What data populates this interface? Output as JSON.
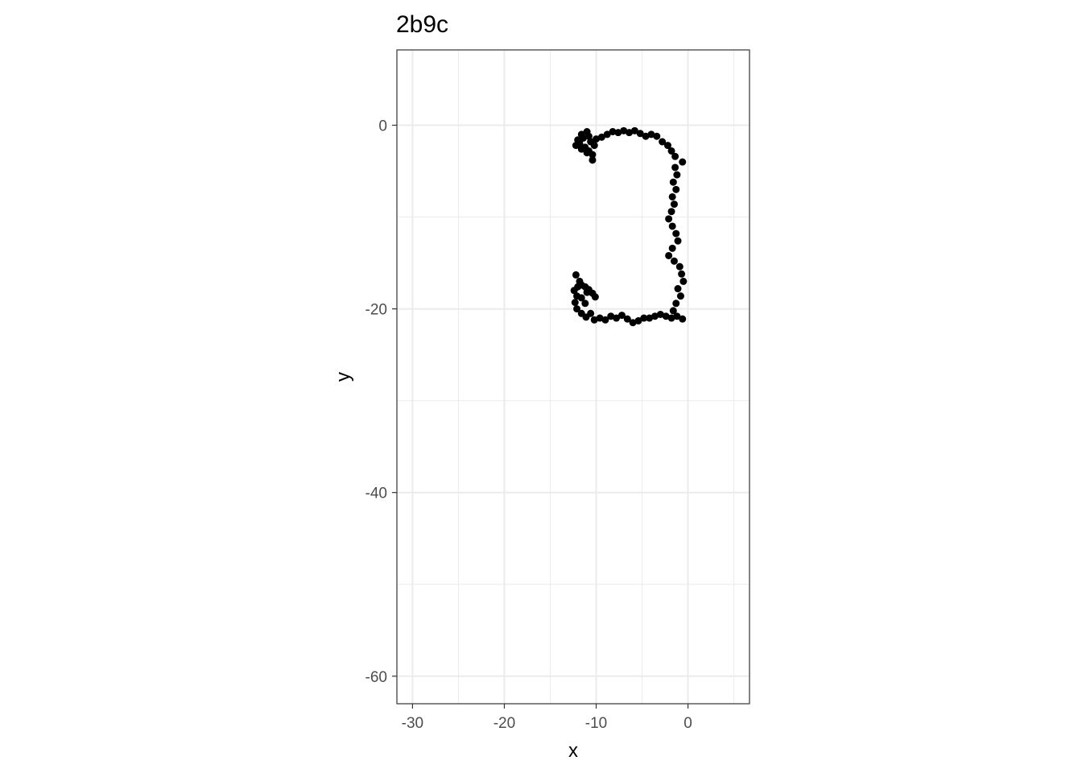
{
  "chart_data": {
    "type": "scatter",
    "title": "2b9c",
    "xlabel": "x",
    "ylabel": "y",
    "xlim": [
      -31.7,
      6.7
    ],
    "ylim": [
      -63,
      8.2
    ],
    "x_breaks": [
      -30,
      -20,
      -10,
      0
    ],
    "x_tick_labels": [
      "-30",
      "-20",
      "-10",
      "0"
    ],
    "x_minor_breaks": [
      -25,
      -15,
      -5,
      5
    ],
    "y_breaks": [
      0,
      -20,
      -40,
      -60
    ],
    "y_tick_labels": [
      "0",
      "-20",
      "-40",
      "-60"
    ],
    "y_minor_breaks": [
      -10,
      -30,
      -50
    ],
    "grid": true,
    "point_color": "#000000",
    "grid_color": "#ebebeb",
    "series": [
      {
        "name": "trace",
        "points": [
          [
            -12.0,
            -1.6
          ],
          [
            -11.6,
            -1.0
          ],
          [
            -11.0,
            -0.7
          ],
          [
            -11.8,
            -2.0
          ],
          [
            -11.2,
            -2.4
          ],
          [
            -10.8,
            -2.8
          ],
          [
            -10.4,
            -3.2
          ],
          [
            -11.4,
            -1.4
          ],
          [
            -10.6,
            -1.8
          ],
          [
            -10.2,
            -2.2
          ],
          [
            -11.0,
            -3.0
          ],
          [
            -10.4,
            -3.8
          ],
          [
            -12.2,
            -2.2
          ],
          [
            -11.6,
            -2.6
          ],
          [
            -10.8,
            -1.2
          ],
          [
            -10.0,
            -1.5
          ],
          [
            -9.4,
            -1.3
          ],
          [
            -8.8,
            -1.0
          ],
          [
            -8.2,
            -0.7
          ],
          [
            -7.6,
            -0.8
          ],
          [
            -7.0,
            -0.6
          ],
          [
            -6.4,
            -0.8
          ],
          [
            -5.8,
            -0.6
          ],
          [
            -5.2,
            -0.9
          ],
          [
            -4.6,
            -1.2
          ],
          [
            -4.0,
            -1.0
          ],
          [
            -3.4,
            -1.2
          ],
          [
            -2.8,
            -1.8
          ],
          [
            -2.2,
            -2.2
          ],
          [
            -1.8,
            -2.8
          ],
          [
            -1.4,
            -3.4
          ],
          [
            -0.6,
            -4.0
          ],
          [
            -1.4,
            -4.6
          ],
          [
            -1.2,
            -5.4
          ],
          [
            -1.6,
            -6.2
          ],
          [
            -1.3,
            -7.0
          ],
          [
            -1.7,
            -7.8
          ],
          [
            -1.5,
            -8.6
          ],
          [
            -1.8,
            -9.4
          ],
          [
            -2.1,
            -10.2
          ],
          [
            -1.7,
            -11.0
          ],
          [
            -1.3,
            -11.8
          ],
          [
            -1.1,
            -12.6
          ],
          [
            -1.7,
            -13.4
          ],
          [
            -2.1,
            -14.2
          ],
          [
            -1.5,
            -14.8
          ],
          [
            -0.9,
            -15.4
          ],
          [
            -0.7,
            -16.2
          ],
          [
            -0.5,
            -17.0
          ],
          [
            -1.1,
            -17.8
          ],
          [
            -0.8,
            -18.6
          ],
          [
            -1.3,
            -19.4
          ],
          [
            -1.6,
            -20.2
          ],
          [
            -1.2,
            -20.8
          ],
          [
            -0.6,
            -21.1
          ],
          [
            -1.8,
            -21.0
          ],
          [
            -2.4,
            -20.8
          ],
          [
            -3.0,
            -20.6
          ],
          [
            -3.6,
            -20.8
          ],
          [
            -4.2,
            -21.0
          ],
          [
            -4.8,
            -21.0
          ],
          [
            -5.4,
            -21.3
          ],
          [
            -6.0,
            -21.5
          ],
          [
            -6.6,
            -21.1
          ],
          [
            -7.2,
            -20.7
          ],
          [
            -7.8,
            -21.0
          ],
          [
            -8.4,
            -20.8
          ],
          [
            -9.0,
            -21.2
          ],
          [
            -9.6,
            -21.0
          ],
          [
            -10.2,
            -21.2
          ],
          [
            -10.6,
            -20.5
          ],
          [
            -11.1,
            -20.9
          ],
          [
            -11.6,
            -20.5
          ],
          [
            -12.1,
            -20.0
          ],
          [
            -12.3,
            -19.3
          ],
          [
            -12.1,
            -18.6
          ],
          [
            -12.4,
            -18.0
          ],
          [
            -12.0,
            -17.6
          ],
          [
            -11.6,
            -17.4
          ],
          [
            -11.2,
            -17.6
          ],
          [
            -10.8,
            -17.9
          ],
          [
            -10.4,
            -18.3
          ],
          [
            -10.1,
            -18.7
          ],
          [
            -11.0,
            -18.2
          ],
          [
            -11.6,
            -18.8
          ],
          [
            -11.2,
            -19.4
          ],
          [
            -12.2,
            -16.3
          ],
          [
            -11.8,
            -17.0
          ]
        ]
      }
    ]
  }
}
